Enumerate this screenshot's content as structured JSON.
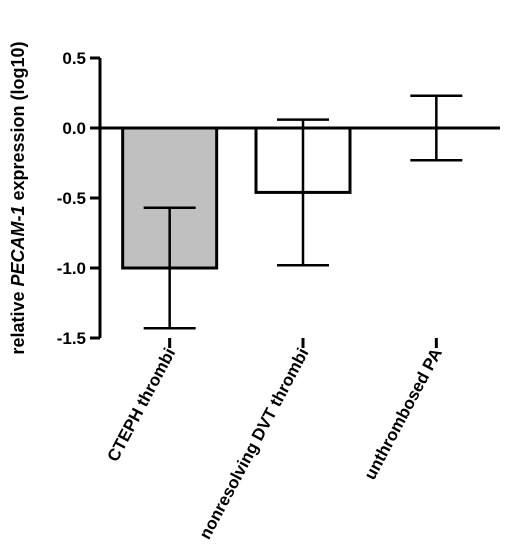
{
  "chart_data": {
    "type": "bar",
    "title": "",
    "xlabel": "",
    "ylabel_parts": [
      "relative ",
      "PECAM-1",
      " expression (log10)"
    ],
    "ylim": [
      -1.5,
      0.5
    ],
    "yticks": [
      "0.5",
      "0.0",
      "-0.5",
      "-1.0",
      "-1.5"
    ],
    "ytick_values": [
      0.5,
      0.0,
      -0.5,
      -1.0,
      -1.5
    ],
    "categories": [
      "CTEPH thrombi",
      "nonresolving DVT thrombi",
      "unthrombosed PA"
    ],
    "values": [
      -1.0,
      -0.46,
      0.0
    ],
    "error_upper": [
      -0.57,
      0.06,
      0.23
    ],
    "error_lower": [
      -1.43,
      -0.98,
      -0.23
    ],
    "bar_colors": [
      "#c0c0c0",
      "#ffffff",
      "#ffffff"
    ],
    "grid": false,
    "legend": "none"
  }
}
